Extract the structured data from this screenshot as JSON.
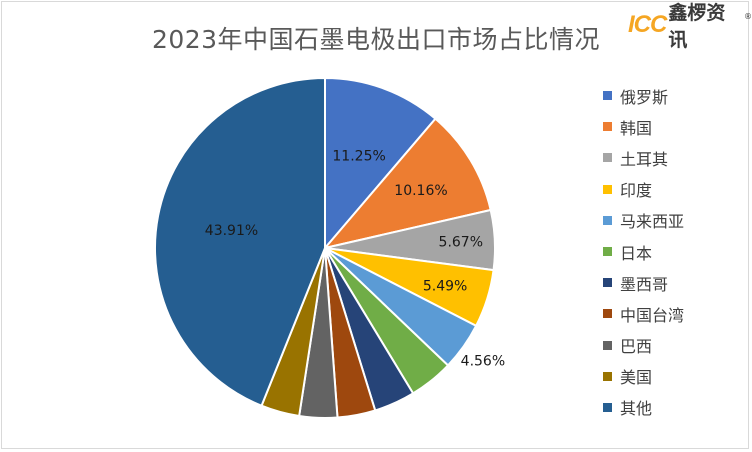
{
  "title": "2023年中国石墨电极出口市场占比情况",
  "logo": {
    "brand": "ICC",
    "name": "鑫椤资讯",
    "mark": "®"
  },
  "chart_data": {
    "type": "pie",
    "title": "2023年中国石墨电极出口市场占比情况",
    "legend_position": "right",
    "start_angle_deg": 0,
    "direction": "clockwise",
    "slices": [
      {
        "name": "俄罗斯",
        "value": 11.25,
        "label": "11.25%",
        "color": "#4472c4"
      },
      {
        "name": "韩国",
        "value": 10.16,
        "label": "10.16%",
        "color": "#ed7d31"
      },
      {
        "name": "土耳其",
        "value": 5.67,
        "label": "5.67%",
        "color": "#a5a5a5"
      },
      {
        "name": "印度",
        "value": 5.49,
        "label": "5.49%",
        "color": "#ffc000"
      },
      {
        "name": "马来西亚",
        "value": 4.56,
        "label": "4.56%",
        "color": "#5b9bd5"
      },
      {
        "name": "日本",
        "value": 4.2,
        "label": "",
        "color": "#70ad47"
      },
      {
        "name": "墨西哥",
        "value": 3.9,
        "label": "",
        "color": "#264478"
      },
      {
        "name": "中国台湾",
        "value": 3.6,
        "label": "",
        "color": "#9e480e"
      },
      {
        "name": "巴西",
        "value": 3.6,
        "label": "",
        "color": "#636363"
      },
      {
        "name": "美国",
        "value": 3.66,
        "label": "",
        "color": "#997300"
      },
      {
        "name": "其他",
        "value": 43.91,
        "label": "43.91%",
        "color": "#255e91"
      }
    ]
  }
}
